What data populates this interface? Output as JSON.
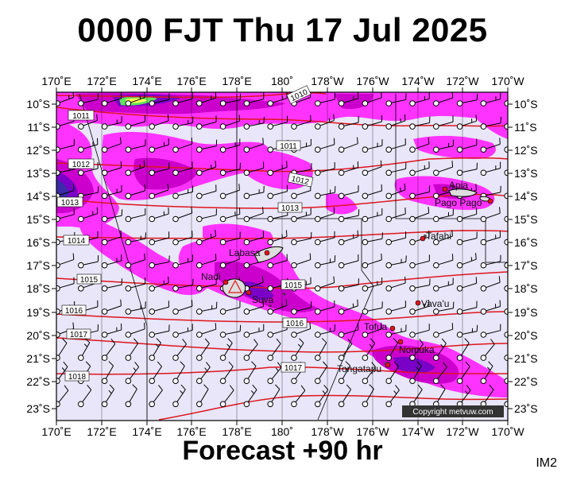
{
  "title": "0000 FJT Thu 17 Jul 2025",
  "subtitle": "Forecast +90 hr",
  "image_code": "IM2",
  "copyright": "Copyright metvuw.com",
  "axes": {
    "lon_labels": [
      "170˚E",
      "172˚E",
      "174˚E",
      "176˚E",
      "178˚E",
      "180˚",
      "178˚W",
      "176˚W",
      "174˚W",
      "172˚W",
      "170˚W"
    ],
    "lat_labels": [
      "10˚S",
      "11˚S",
      "12˚S",
      "13˚S",
      "14˚S",
      "15˚S",
      "16˚S",
      "17˚S",
      "18˚S",
      "19˚S",
      "20˚S",
      "21˚S",
      "22˚S",
      "23˚S"
    ]
  },
  "isobar_labels": [
    "1010",
    "1011",
    "1011",
    "1012",
    "1012",
    "1013",
    "1013",
    "1014",
    "1015",
    "1015",
    "1016",
    "1016",
    "1017",
    "1017",
    "1018"
  ],
  "places": [
    "Apia",
    "Pago Pago",
    "Tafahi",
    "Labasa",
    "Nadi",
    "Suva",
    "Vava'u",
    "Tofua",
    "Nomuka",
    "Tongatapu"
  ],
  "colors": {
    "background": "#e8e6f8",
    "isobar": "#e0141e",
    "rain_light": "#ff33ff",
    "rain_mid": "#cc00cc",
    "rain_heavy": "#7a00c8",
    "rain_deep": "#3c2aa8",
    "rain_green": "#5fe05f",
    "rain_yellow": "#ffff55"
  }
}
